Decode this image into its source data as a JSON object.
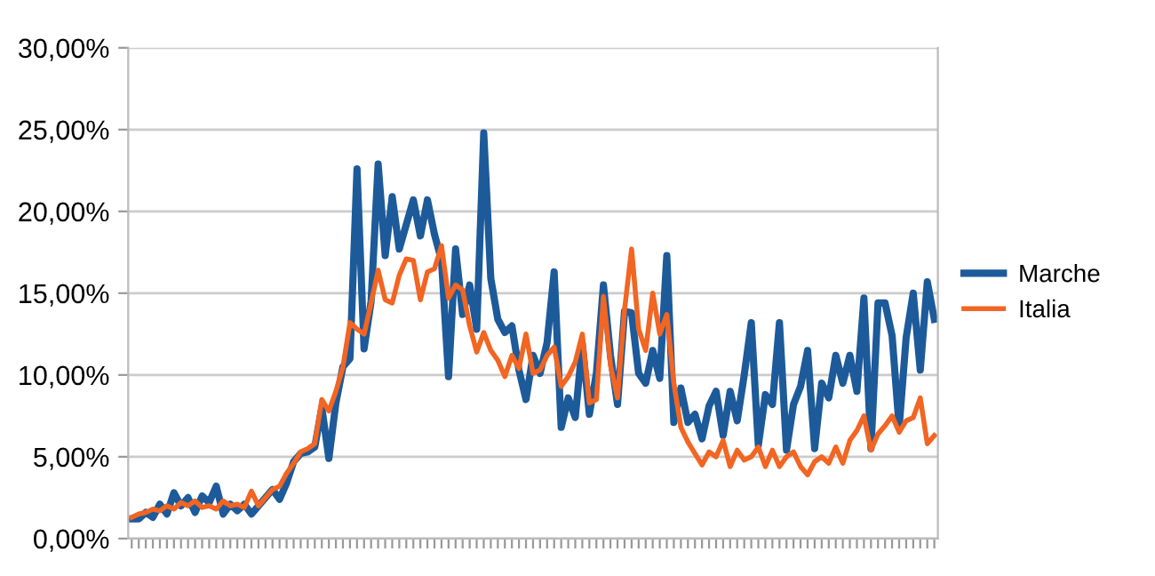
{
  "chart_data": {
    "type": "line",
    "categories": [
      null,
      null,
      null,
      null,
      null,
      null,
      null,
      null,
      null,
      null,
      null,
      null,
      null,
      null,
      null,
      null,
      null,
      null,
      null,
      null,
      null,
      null,
      null,
      null,
      null,
      null,
      null,
      null,
      null,
      null,
      null,
      null,
      null,
      null,
      null,
      null,
      null,
      null,
      null,
      null,
      null,
      null,
      null,
      null,
      null,
      null,
      null,
      null,
      null,
      null,
      null,
      null,
      null,
      null,
      null,
      null,
      null,
      null,
      null,
      null,
      null,
      null,
      null,
      null,
      null,
      null,
      null,
      null,
      null,
      null,
      null,
      null,
      null,
      null,
      null,
      null,
      null,
      null,
      null,
      null,
      null,
      null,
      null,
      null,
      null,
      null,
      null,
      null,
      null,
      null,
      null,
      null,
      null,
      null,
      null,
      null,
      null,
      null,
      null,
      null,
      null,
      null,
      null,
      null,
      null,
      null,
      null,
      null,
      null,
      null,
      null,
      null,
      null,
      null,
      null
    ],
    "series": [
      {
        "name": "Marche",
        "color": "#1d5a9a",
        "values": [
          1.2,
          1.2,
          1.6,
          1.3,
          2.1,
          1.5,
          2.8,
          2.0,
          2.5,
          1.6,
          2.6,
          2.2,
          3.2,
          1.5,
          2.1,
          1.7,
          2.1,
          1.5,
          2.0,
          2.5,
          3.0,
          2.4,
          3.4,
          4.7,
          5.2,
          5.3,
          5.6,
          8.0,
          4.9,
          8.3,
          10.5,
          11.0,
          22.6,
          11.6,
          14.5,
          22.9,
          17.3,
          20.9,
          17.7,
          19.2,
          20.7,
          18.5,
          20.7,
          18.6,
          17.0,
          9.9,
          17.7,
          13.7,
          15.5,
          12.8,
          24.8,
          15.9,
          13.4,
          12.6,
          13.0,
          10.3,
          8.5,
          11.2,
          10.1,
          12.0,
          16.3,
          6.8,
          8.6,
          7.4,
          11.9,
          7.6,
          10.1,
          15.5,
          11.2,
          8.2,
          13.9,
          13.8,
          10.1,
          9.5,
          11.5,
          9.8,
          17.3,
          7.1,
          9.2,
          7.1,
          7.6,
          6.1,
          8.1,
          9.0,
          6.3,
          9.0,
          7.2,
          10.0,
          13.2,
          5.7,
          8.8,
          8.2,
          13.2,
          5.4,
          8.2,
          9.3,
          11.5,
          5.5,
          9.5,
          8.6,
          11.2,
          9.5,
          11.2,
          9.0,
          14.7,
          5.5,
          14.4,
          14.4,
          12.4,
          6.8,
          12.3,
          15.0,
          10.3,
          15.7,
          13.4
        ]
      },
      {
        "name": "Italia",
        "color": "#f26522",
        "values": [
          1.3,
          1.5,
          1.6,
          1.8,
          1.7,
          2.0,
          1.8,
          2.2,
          2.0,
          2.3,
          1.9,
          2.0,
          1.8,
          2.3,
          2.0,
          2.1,
          1.9,
          2.9,
          2.0,
          2.5,
          3.0,
          3.2,
          4.0,
          4.6,
          5.3,
          5.5,
          5.8,
          8.5,
          7.8,
          9.0,
          10.5,
          13.2,
          12.8,
          12.5,
          14.4,
          16.4,
          14.6,
          14.4,
          16.1,
          17.1,
          17.0,
          14.6,
          16.3,
          16.5,
          17.9,
          14.7,
          15.5,
          15.2,
          13.0,
          11.4,
          12.6,
          11.5,
          10.9,
          9.9,
          11.2,
          10.4,
          12.5,
          10.1,
          10.3,
          11.2,
          11.7,
          9.3,
          9.9,
          10.8,
          12.5,
          8.3,
          8.5,
          14.8,
          10.6,
          8.6,
          14.0,
          17.7,
          12.8,
          11.5,
          15.0,
          12.5,
          13.7,
          9.5,
          6.8,
          5.9,
          5.2,
          4.5,
          5.3,
          5.0,
          6.0,
          4.4,
          5.4,
          4.8,
          5.0,
          5.6,
          4.4,
          5.4,
          4.4,
          5.0,
          5.3,
          4.4,
          3.9,
          4.7,
          5.0,
          4.6,
          5.6,
          4.6,
          6.0,
          6.6,
          7.5,
          5.4,
          6.4,
          6.9,
          7.5,
          6.5,
          7.2,
          7.4,
          8.6,
          5.8,
          6.3
        ]
      }
    ],
    "ylim": [
      0,
      30
    ],
    "yticks": [
      {
        "value": 0,
        "label": "0,00%"
      },
      {
        "value": 5,
        "label": "5,00%"
      },
      {
        "value": 10,
        "label": "10,00%"
      },
      {
        "value": 15,
        "label": "15,00%"
      },
      {
        "value": 20,
        "label": "20,00%"
      },
      {
        "value": 25,
        "label": "25,00%"
      },
      {
        "value": 30,
        "label": "30,00%"
      }
    ],
    "grid": "y",
    "legend": "right",
    "tick_labels": "y",
    "marker": "none",
    "line_style": "solid"
  }
}
